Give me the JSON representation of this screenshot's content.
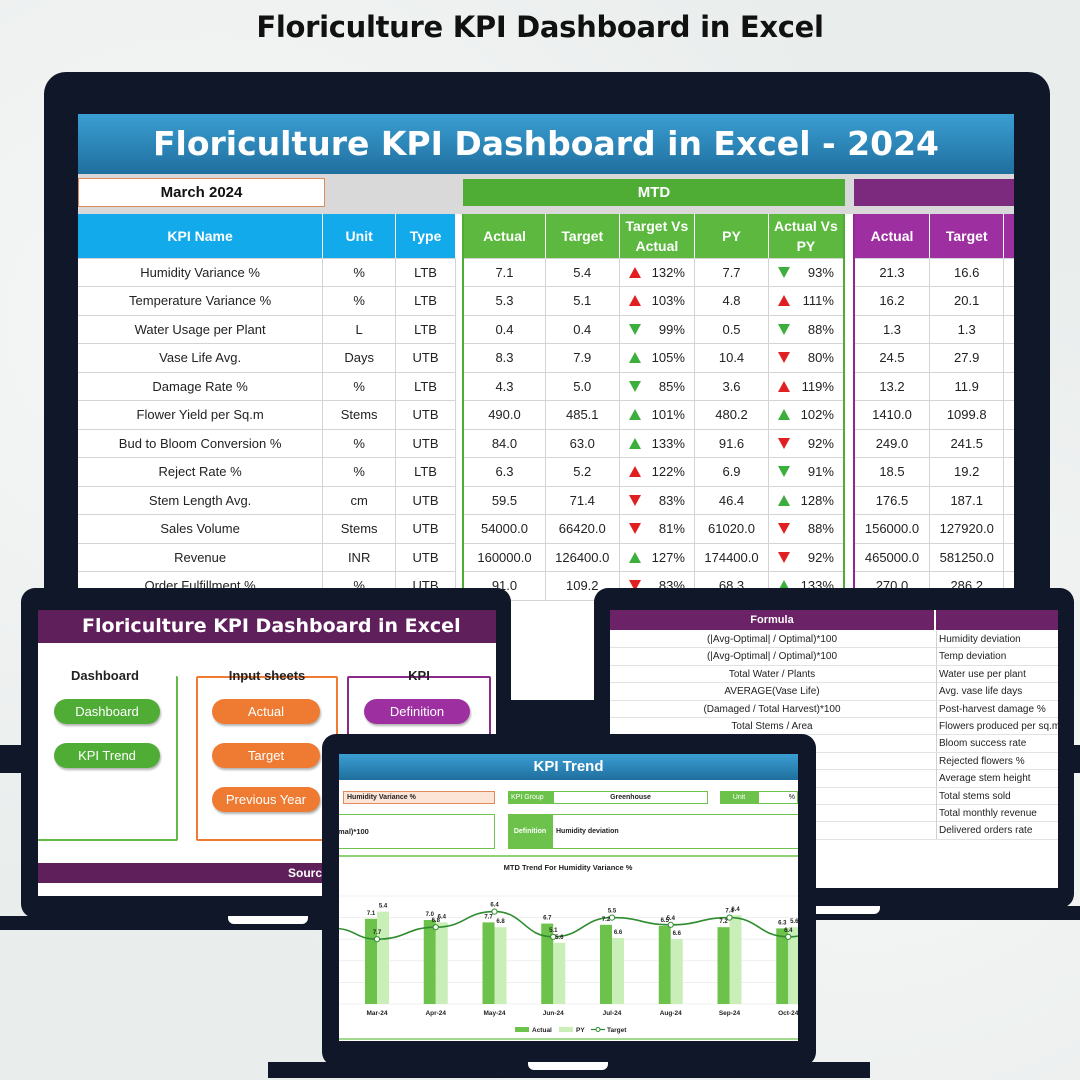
{
  "page_title": "Floriculture KPI Dashboard in Excel",
  "main": {
    "banner": "Floriculture KPI Dashboard in Excel - 2024",
    "month": "March 2024",
    "mtd_label": "MTD",
    "headers": {
      "kpi_name": "KPI Name",
      "unit": "Unit",
      "type": "Type",
      "actual": "Actual",
      "target": "Target",
      "tva": "Target Vs Actual",
      "py": "PY",
      "avp": "Actual Vs PY",
      "ytd_actual": "Actual",
      "ytd_target": "Target"
    },
    "rows": [
      {
        "name": "Humidity Variance %",
        "unit": "%",
        "type": "LTB",
        "actual": "7.1",
        "target": "5.4",
        "tva": "132%",
        "tva_dir": "up-red",
        "py": "7.7",
        "avp": "93%",
        "avp_dir": "down-green",
        "ya": "21.3",
        "yt": "16.6"
      },
      {
        "name": "Temperature Variance %",
        "unit": "%",
        "type": "LTB",
        "actual": "5.3",
        "target": "5.1",
        "tva": "103%",
        "tva_dir": "up-red",
        "py": "4.8",
        "avp": "111%",
        "avp_dir": "up-red",
        "ya": "16.2",
        "yt": "20.1"
      },
      {
        "name": "Water Usage per Plant",
        "unit": "L",
        "type": "LTB",
        "actual": "0.4",
        "target": "0.4",
        "tva": "99%",
        "tva_dir": "down-green",
        "py": "0.5",
        "avp": "88%",
        "avp_dir": "down-green",
        "ya": "1.3",
        "yt": "1.3"
      },
      {
        "name": "Vase Life Avg.",
        "unit": "Days",
        "type": "UTB",
        "actual": "8.3",
        "target": "7.9",
        "tva": "105%",
        "tva_dir": "up-green",
        "py": "10.4",
        "avp": "80%",
        "avp_dir": "down-red",
        "ya": "24.5",
        "yt": "27.9"
      },
      {
        "name": "Damage Rate %",
        "unit": "%",
        "type": "LTB",
        "actual": "4.3",
        "target": "5.0",
        "tva": "85%",
        "tva_dir": "down-green",
        "py": "3.6",
        "avp": "119%",
        "avp_dir": "up-red",
        "ya": "13.2",
        "yt": "11.9"
      },
      {
        "name": "Flower Yield per Sq.m",
        "unit": "Stems",
        "type": "UTB",
        "actual": "490.0",
        "target": "485.1",
        "tva": "101%",
        "tva_dir": "up-green",
        "py": "480.2",
        "avp": "102%",
        "avp_dir": "up-green",
        "ya": "1410.0",
        "yt": "1099.8"
      },
      {
        "name": "Bud to Bloom Conversion %",
        "unit": "%",
        "type": "UTB",
        "actual": "84.0",
        "target": "63.0",
        "tva": "133%",
        "tva_dir": "up-green",
        "py": "91.6",
        "avp": "92%",
        "avp_dir": "down-red",
        "ya": "249.0",
        "yt": "241.5"
      },
      {
        "name": "Reject Rate %",
        "unit": "%",
        "type": "LTB",
        "actual": "6.3",
        "target": "5.2",
        "tva": "122%",
        "tva_dir": "up-red",
        "py": "6.9",
        "avp": "91%",
        "avp_dir": "down-green",
        "ya": "18.5",
        "yt": "19.2"
      },
      {
        "name": "Stem Length Avg.",
        "unit": "cm",
        "type": "UTB",
        "actual": "59.5",
        "target": "71.4",
        "tva": "83%",
        "tva_dir": "down-red",
        "py": "46.4",
        "avp": "128%",
        "avp_dir": "up-green",
        "ya": "176.5",
        "yt": "187.1"
      },
      {
        "name": "Sales Volume",
        "unit": "Stems",
        "type": "UTB",
        "actual": "54000.0",
        "target": "66420.0",
        "tva": "81%",
        "tva_dir": "down-red",
        "py": "61020.0",
        "avp": "88%",
        "avp_dir": "down-red",
        "ya": "156000.0",
        "yt": "127920.0"
      },
      {
        "name": "Revenue",
        "unit": "INR",
        "type": "UTB",
        "actual": "160000.0",
        "target": "126400.0",
        "tva": "127%",
        "tva_dir": "up-green",
        "py": "174400.0",
        "avp": "92%",
        "avp_dir": "down-red",
        "ya": "465000.0",
        "yt": "581250.0"
      },
      {
        "name": "Order Fulfillment %",
        "unit": "%",
        "type": "UTB",
        "actual": "91.0",
        "target": "109.2",
        "tva": "83%",
        "tva_dir": "down-red",
        "py": "68.3",
        "avp": "133%",
        "avp_dir": "up-green",
        "ya": "270.0",
        "yt": "286.2"
      }
    ]
  },
  "nav": {
    "banner": "Floriculture KPI Dashboard in Excel",
    "dashboard_title": "Dashboard",
    "dashboard_btn": "Dashboard",
    "kpi_trend_btn": "KPI Trend",
    "input_title": "Input sheets",
    "actual_btn": "Actual",
    "target_btn": "Target",
    "py_btn": "Previous Year",
    "kpi_title": "KPI",
    "definition_btn": "Definition",
    "source": "Source"
  },
  "formula_sheet": {
    "header": "Formula",
    "rows": [
      {
        "formula": "(|Avg-Optimal| / Optimal)*100",
        "def": "Humidity deviation"
      },
      {
        "formula": "(|Avg-Optimal| / Optimal)*100",
        "def": "Temp deviation"
      },
      {
        "formula": "Total Water / Plants",
        "def": "Water use per plant"
      },
      {
        "formula": "AVERAGE(Vase Life)",
        "def": "Avg. vase life days"
      },
      {
        "formula": "(Damaged / Total Harvest)*100",
        "def": "Post-harvest damage %"
      },
      {
        "formula": "Total Stems / Area",
        "def": "Flowers produced per sq.m"
      },
      {
        "formula": "00",
        "def": "Bloom success rate"
      },
      {
        "formula": "",
        "def": "Rejected flowers %"
      },
      {
        "formula": "",
        "def": "Average stem height"
      },
      {
        "formula": "",
        "def": "Total stems sold"
      },
      {
        "formula": "",
        "def": "Total monthly revenue"
      },
      {
        "formula": "00",
        "def": "Delivered orders rate"
      }
    ]
  },
  "kpi_trend": {
    "banner": "KPI Trend",
    "kpi_select": "Humidity Variance %",
    "kpi_group_label": "KPI Group",
    "kpi_group_value": "Greenhouse",
    "unit_label": "Unit",
    "unit_value": "%",
    "formula_snippet": "mal)*100",
    "definition_label": "Definition",
    "definition_value": "Humidity deviation",
    "chart_data": {
      "type": "bar",
      "title": "MTD Trend For Humidity Variance %",
      "categories": [
        "Mar-24",
        "Apr-24",
        "May-24",
        "Jun-24",
        "Jul-24",
        "Aug-24",
        "Sep-24",
        "Oct-24"
      ],
      "series": [
        {
          "name": "Actual",
          "values": [
            7.1,
            7.0,
            6.8,
            6.7,
            6.6,
            6.5,
            6.4,
            6.3
          ]
        },
        {
          "name": "PY",
          "values": [
            7.7,
            6.8,
            6.4,
            5.1,
            5.5,
            5.4,
            7.4,
            6.4
          ]
        },
        {
          "name": "Target",
          "values": [
            5.4,
            6.4,
            7.7,
            5.6,
            7.2,
            6.6,
            7.2,
            5.6
          ]
        }
      ],
      "data_labels": [
        "7.1",
        "5.4",
        "7.7",
        "7.0",
        "6.4",
        "6.8",
        "7.7",
        "6.8",
        "6.4",
        "6.7",
        "5.6",
        "5.1",
        "7.2",
        "6.6",
        "5.5",
        "6.5",
        "6.6",
        "5.4",
        "7.2",
        "6.4",
        "7.4",
        "6.3",
        "5.6",
        "6.4"
      ],
      "colors": {
        "actual": "#6cc24a",
        "py": "#c9eeb8",
        "target": "#2e8b2e"
      },
      "ylim": [
        0,
        9
      ],
      "legend": "bottom"
    }
  }
}
